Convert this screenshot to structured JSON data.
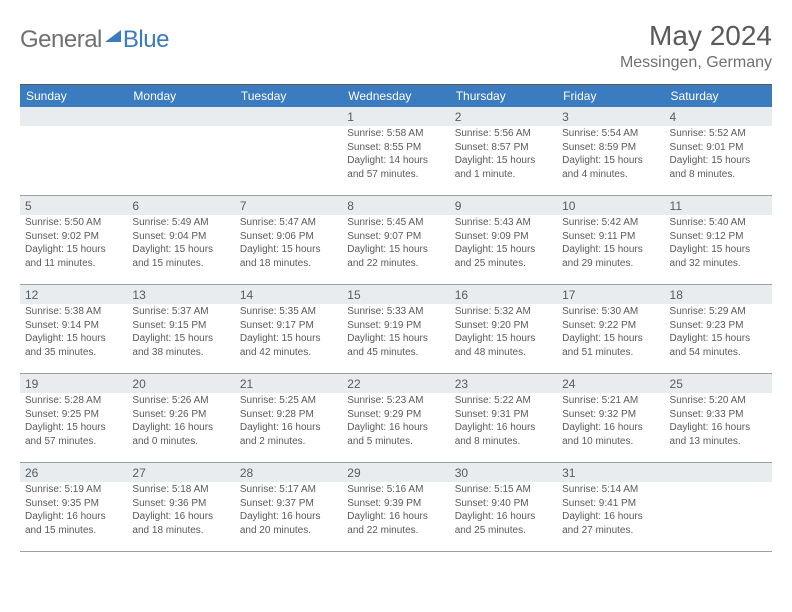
{
  "brand": {
    "part1": "General",
    "part2": "Blue"
  },
  "title": "May 2024",
  "location": "Messingen, Germany",
  "colors": {
    "header_bg": "#3b7bbf",
    "header_text": "#ffffff",
    "daynum_bg": "#e9ecef",
    "border": "#9aa0a6",
    "top_border": "#5a5a5a",
    "text": "#5a5a5a"
  },
  "day_headers": [
    "Sunday",
    "Monday",
    "Tuesday",
    "Wednesday",
    "Thursday",
    "Friday",
    "Saturday"
  ],
  "weeks": [
    [
      {
        "num": "",
        "sunrise": "",
        "sunset": "",
        "daylight": ""
      },
      {
        "num": "",
        "sunrise": "",
        "sunset": "",
        "daylight": ""
      },
      {
        "num": "",
        "sunrise": "",
        "sunset": "",
        "daylight": ""
      },
      {
        "num": "1",
        "sunrise": "Sunrise: 5:58 AM",
        "sunset": "Sunset: 8:55 PM",
        "daylight": "Daylight: 14 hours and 57 minutes."
      },
      {
        "num": "2",
        "sunrise": "Sunrise: 5:56 AM",
        "sunset": "Sunset: 8:57 PM",
        "daylight": "Daylight: 15 hours and 1 minute."
      },
      {
        "num": "3",
        "sunrise": "Sunrise: 5:54 AM",
        "sunset": "Sunset: 8:59 PM",
        "daylight": "Daylight: 15 hours and 4 minutes."
      },
      {
        "num": "4",
        "sunrise": "Sunrise: 5:52 AM",
        "sunset": "Sunset: 9:01 PM",
        "daylight": "Daylight: 15 hours and 8 minutes."
      }
    ],
    [
      {
        "num": "5",
        "sunrise": "Sunrise: 5:50 AM",
        "sunset": "Sunset: 9:02 PM",
        "daylight": "Daylight: 15 hours and 11 minutes."
      },
      {
        "num": "6",
        "sunrise": "Sunrise: 5:49 AM",
        "sunset": "Sunset: 9:04 PM",
        "daylight": "Daylight: 15 hours and 15 minutes."
      },
      {
        "num": "7",
        "sunrise": "Sunrise: 5:47 AM",
        "sunset": "Sunset: 9:06 PM",
        "daylight": "Daylight: 15 hours and 18 minutes."
      },
      {
        "num": "8",
        "sunrise": "Sunrise: 5:45 AM",
        "sunset": "Sunset: 9:07 PM",
        "daylight": "Daylight: 15 hours and 22 minutes."
      },
      {
        "num": "9",
        "sunrise": "Sunrise: 5:43 AM",
        "sunset": "Sunset: 9:09 PM",
        "daylight": "Daylight: 15 hours and 25 minutes."
      },
      {
        "num": "10",
        "sunrise": "Sunrise: 5:42 AM",
        "sunset": "Sunset: 9:11 PM",
        "daylight": "Daylight: 15 hours and 29 minutes."
      },
      {
        "num": "11",
        "sunrise": "Sunrise: 5:40 AM",
        "sunset": "Sunset: 9:12 PM",
        "daylight": "Daylight: 15 hours and 32 minutes."
      }
    ],
    [
      {
        "num": "12",
        "sunrise": "Sunrise: 5:38 AM",
        "sunset": "Sunset: 9:14 PM",
        "daylight": "Daylight: 15 hours and 35 minutes."
      },
      {
        "num": "13",
        "sunrise": "Sunrise: 5:37 AM",
        "sunset": "Sunset: 9:15 PM",
        "daylight": "Daylight: 15 hours and 38 minutes."
      },
      {
        "num": "14",
        "sunrise": "Sunrise: 5:35 AM",
        "sunset": "Sunset: 9:17 PM",
        "daylight": "Daylight: 15 hours and 42 minutes."
      },
      {
        "num": "15",
        "sunrise": "Sunrise: 5:33 AM",
        "sunset": "Sunset: 9:19 PM",
        "daylight": "Daylight: 15 hours and 45 minutes."
      },
      {
        "num": "16",
        "sunrise": "Sunrise: 5:32 AM",
        "sunset": "Sunset: 9:20 PM",
        "daylight": "Daylight: 15 hours and 48 minutes."
      },
      {
        "num": "17",
        "sunrise": "Sunrise: 5:30 AM",
        "sunset": "Sunset: 9:22 PM",
        "daylight": "Daylight: 15 hours and 51 minutes."
      },
      {
        "num": "18",
        "sunrise": "Sunrise: 5:29 AM",
        "sunset": "Sunset: 9:23 PM",
        "daylight": "Daylight: 15 hours and 54 minutes."
      }
    ],
    [
      {
        "num": "19",
        "sunrise": "Sunrise: 5:28 AM",
        "sunset": "Sunset: 9:25 PM",
        "daylight": "Daylight: 15 hours and 57 minutes."
      },
      {
        "num": "20",
        "sunrise": "Sunrise: 5:26 AM",
        "sunset": "Sunset: 9:26 PM",
        "daylight": "Daylight: 16 hours and 0 minutes."
      },
      {
        "num": "21",
        "sunrise": "Sunrise: 5:25 AM",
        "sunset": "Sunset: 9:28 PM",
        "daylight": "Daylight: 16 hours and 2 minutes."
      },
      {
        "num": "22",
        "sunrise": "Sunrise: 5:23 AM",
        "sunset": "Sunset: 9:29 PM",
        "daylight": "Daylight: 16 hours and 5 minutes."
      },
      {
        "num": "23",
        "sunrise": "Sunrise: 5:22 AM",
        "sunset": "Sunset: 9:31 PM",
        "daylight": "Daylight: 16 hours and 8 minutes."
      },
      {
        "num": "24",
        "sunrise": "Sunrise: 5:21 AM",
        "sunset": "Sunset: 9:32 PM",
        "daylight": "Daylight: 16 hours and 10 minutes."
      },
      {
        "num": "25",
        "sunrise": "Sunrise: 5:20 AM",
        "sunset": "Sunset: 9:33 PM",
        "daylight": "Daylight: 16 hours and 13 minutes."
      }
    ],
    [
      {
        "num": "26",
        "sunrise": "Sunrise: 5:19 AM",
        "sunset": "Sunset: 9:35 PM",
        "daylight": "Daylight: 16 hours and 15 minutes."
      },
      {
        "num": "27",
        "sunrise": "Sunrise: 5:18 AM",
        "sunset": "Sunset: 9:36 PM",
        "daylight": "Daylight: 16 hours and 18 minutes."
      },
      {
        "num": "28",
        "sunrise": "Sunrise: 5:17 AM",
        "sunset": "Sunset: 9:37 PM",
        "daylight": "Daylight: 16 hours and 20 minutes."
      },
      {
        "num": "29",
        "sunrise": "Sunrise: 5:16 AM",
        "sunset": "Sunset: 9:39 PM",
        "daylight": "Daylight: 16 hours and 22 minutes."
      },
      {
        "num": "30",
        "sunrise": "Sunrise: 5:15 AM",
        "sunset": "Sunset: 9:40 PM",
        "daylight": "Daylight: 16 hours and 25 minutes."
      },
      {
        "num": "31",
        "sunrise": "Sunrise: 5:14 AM",
        "sunset": "Sunset: 9:41 PM",
        "daylight": "Daylight: 16 hours and 27 minutes."
      },
      {
        "num": "",
        "sunrise": "",
        "sunset": "",
        "daylight": ""
      }
    ]
  ]
}
